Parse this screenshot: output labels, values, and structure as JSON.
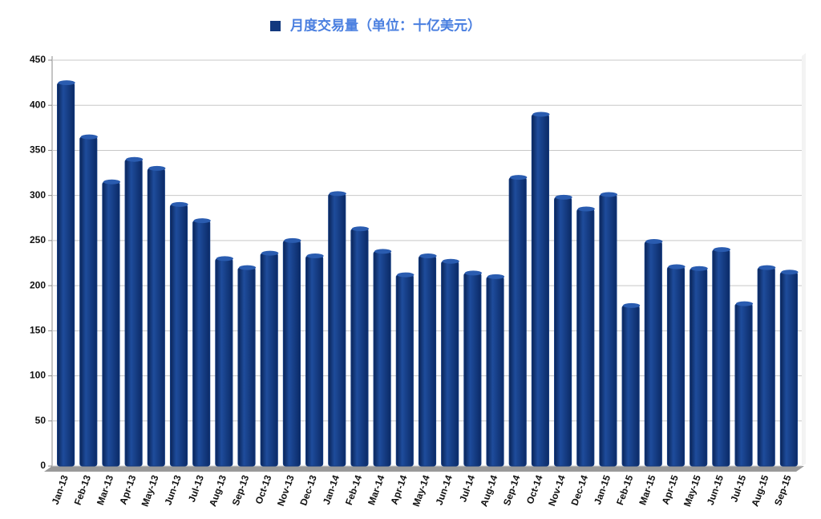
{
  "chart_data": {
    "type": "bar",
    "categories": [
      "Jan-13",
      "Feb-13",
      "Mar-13",
      "Apr-13",
      "May-13",
      "Jun-13",
      "Jul-13",
      "Aug-13",
      "Sep-13",
      "Oct-13",
      "Nov-13",
      "Dec-13",
      "Jan-14",
      "Feb-14",
      "Mar-14",
      "Apr-14",
      "May-14",
      "Jun-14",
      "Jul-14",
      "Aug-14",
      "Sep-14",
      "Oct-14",
      "Nov-14",
      "Dec-14",
      "Jan-15",
      "Feb-15",
      "Mar-15",
      "Apr-15",
      "May-15",
      "Jun-15",
      "Jul-15",
      "Aug-15",
      "Sep-15"
    ],
    "series": [
      {
        "name": "月度交易量（单位：十亿美元）",
        "color": "#12397e",
        "values": [
          425,
          365,
          315,
          340,
          330,
          290,
          272,
          230,
          220,
          236,
          250,
          233,
          302,
          263,
          238,
          212,
          233,
          227,
          214,
          210,
          320,
          390,
          298,
          285,
          301,
          178,
          249,
          221,
          219,
          240,
          180,
          220,
          215
        ]
      }
    ],
    "ylim": [
      0,
      450
    ],
    "yticks": [
      0,
      50,
      100,
      150,
      200,
      250,
      300,
      350,
      400,
      450
    ],
    "grid": true,
    "legend": "top"
  }
}
